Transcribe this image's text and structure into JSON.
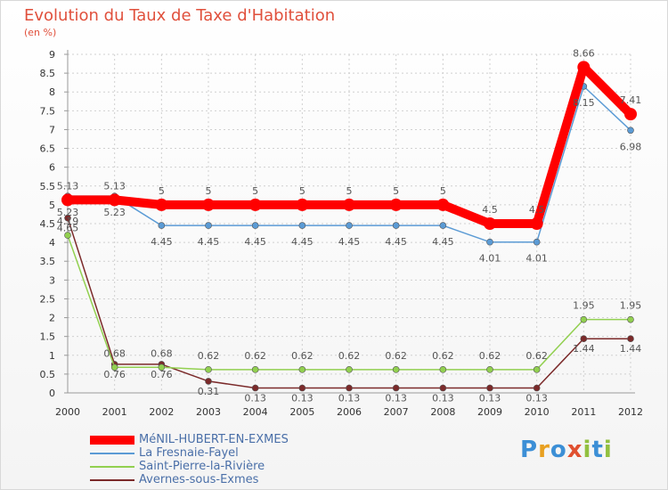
{
  "title": "Evolution du Taux de Taxe d'Habitation",
  "subtitle": "(en %)",
  "logo_text": "Proxiti",
  "colors": {
    "mesnil": "#ff0000",
    "fresnaie": "#5b9bd5",
    "saint_pierre": "#92d050",
    "avernes": "#7b2a2a",
    "title": "#e0503c"
  },
  "chart_data": {
    "type": "line",
    "title": "Evolution du Taux de Taxe d'Habitation",
    "subtitle": "(en %)",
    "x": [
      "2000",
      "2001",
      "2002",
      "2003",
      "2004",
      "2005",
      "2006",
      "2007",
      "2008",
      "2009",
      "2010",
      "2011",
      "2012"
    ],
    "ylim": [
      0,
      9
    ],
    "yticks": [
      "0",
      "0.5",
      "1",
      "1.5",
      "2",
      "2.5",
      "3",
      "3.5",
      "4",
      "4.5",
      "5",
      "5.5",
      "6",
      "6.5",
      "7",
      "7.5",
      "8",
      "8.5",
      "9"
    ],
    "grid": true,
    "legend_position": "bottom-left",
    "series": [
      {
        "name": "MéNIL-HUBERT-EN-EXMES",
        "color": "#ff0000",
        "values": [
          5.13,
          5.13,
          5,
          5,
          5,
          5,
          5,
          5,
          5,
          4.5,
          4.5,
          8.66,
          7.41
        ],
        "labels": [
          "5.13",
          "5.13",
          "5",
          "5",
          "5",
          "5",
          "5",
          "5",
          "5",
          "4.5",
          "4.5",
          "8.66",
          "7.41"
        ]
      },
      {
        "name": "La Fresnaie-Fayel",
        "color": "#5b9bd5",
        "values": [
          5.23,
          5.23,
          4.45,
          4.45,
          4.45,
          4.45,
          4.45,
          4.45,
          4.45,
          4.01,
          4.01,
          8.15,
          6.98
        ],
        "labels": [
          "5.23",
          "5.23",
          "4.45",
          "4.45",
          "4.45",
          "4.45",
          "4.45",
          "4.45",
          "4.45",
          "4.01",
          "4.01",
          "8.15",
          "6.98"
        ]
      },
      {
        "name": "Saint-Pierre-la-Rivière",
        "color": "#92d050",
        "values": [
          4.19,
          0.68,
          0.68,
          0.62,
          0.62,
          0.62,
          0.62,
          0.62,
          0.62,
          0.62,
          0.62,
          1.95,
          1.95
        ],
        "labels": [
          "4.19",
          "0.68",
          "0.68",
          "0.62",
          "0.62",
          "0.62",
          "0.62",
          "0.62",
          "0.62",
          "0.62",
          "0.62",
          "1.95",
          "1.95"
        ]
      },
      {
        "name": "Avernes-sous-Exmes",
        "color": "#7b2a2a",
        "values": [
          4.65,
          0.76,
          0.76,
          0.31,
          0.13,
          0.13,
          0.13,
          0.13,
          0.13,
          0.13,
          0.13,
          1.44,
          1.44
        ],
        "labels": [
          "4.65",
          "0.76",
          "0.76",
          "0.31",
          "0.13",
          "0.13",
          "0.13",
          "0.13",
          "0.13",
          "0.13",
          "0.13",
          "1.44",
          "1.44"
        ]
      }
    ]
  }
}
